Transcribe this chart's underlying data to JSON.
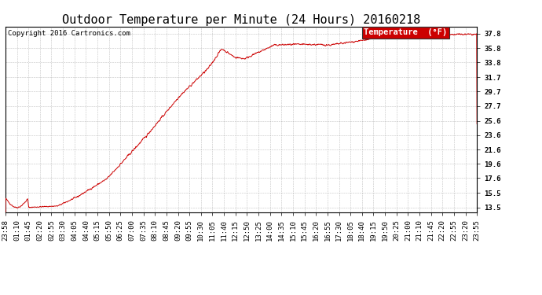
{
  "title": "Outdoor Temperature per Minute (24 Hours) 20160218",
  "copyright": "Copyright 2016 Cartronics.com",
  "legend_label": "Temperature  (°F)",
  "legend_bg": "#cc0000",
  "legend_fg": "#ffffff",
  "line_color": "#cc0000",
  "background_color": "#ffffff",
  "grid_color": "#999999",
  "yticks": [
    13.5,
    15.5,
    17.6,
    19.6,
    21.6,
    23.6,
    25.6,
    27.7,
    29.7,
    31.7,
    33.8,
    35.8,
    37.8
  ],
  "ylim": [
    12.8,
    38.8
  ],
  "xtick_labels": [
    "23:58",
    "01:10",
    "01:45",
    "02:20",
    "02:55",
    "03:30",
    "04:05",
    "04:40",
    "05:15",
    "05:50",
    "06:25",
    "07:00",
    "07:35",
    "08:10",
    "08:45",
    "09:20",
    "09:55",
    "10:30",
    "11:05",
    "11:40",
    "12:15",
    "12:50",
    "13:25",
    "14:00",
    "14:35",
    "15:10",
    "15:45",
    "16:20",
    "16:55",
    "17:30",
    "18:05",
    "18:40",
    "19:15",
    "19:50",
    "20:25",
    "21:00",
    "21:10",
    "21:45",
    "22:20",
    "22:55",
    "23:20",
    "23:55"
  ],
  "title_fontsize": 11,
  "axis_fontsize": 6.5,
  "copyright_fontsize": 6.5
}
